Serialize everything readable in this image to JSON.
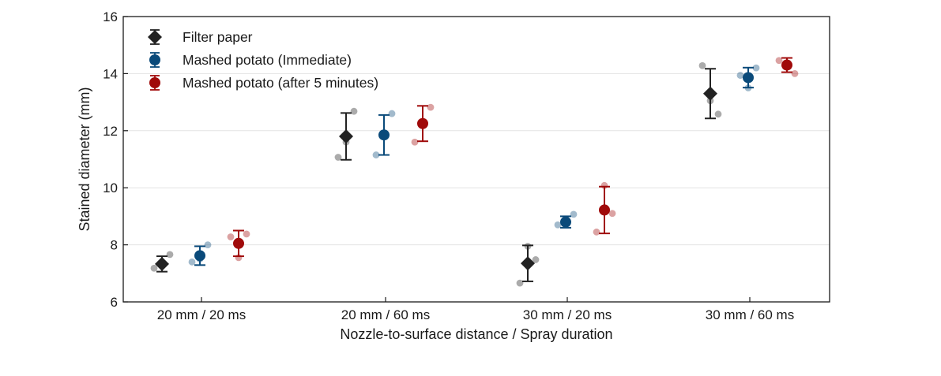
{
  "chart_data": {
    "type": "scatter",
    "title": "",
    "xlabel": "Nozzle-to-surface distance / Spray duration",
    "ylabel": "Stained diameter (mm)",
    "categories": [
      "20 mm / 20 ms",
      "20 mm / 60 ms",
      "30 mm / 20 ms",
      "30 mm / 60 ms"
    ],
    "ylim": [
      6,
      16
    ],
    "yticks": [
      "6",
      "8",
      "10",
      "12",
      "14",
      "16"
    ],
    "grid": "horizontal",
    "legend_position": "top-left",
    "series": [
      {
        "name": "Filter paper",
        "marker": "diamond",
        "color": "#222222",
        "mean": [
          7.33,
          11.8,
          7.35,
          13.3
        ],
        "err": [
          0.27,
          0.82,
          0.63,
          0.87
        ],
        "points": [
          [
            7.18,
            7.35,
            7.66
          ],
          [
            11.07,
            11.6,
            12.68
          ],
          [
            6.66,
            7.95,
            7.48
          ],
          [
            14.28,
            13.05,
            12.58
          ]
        ]
      },
      {
        "name": "Mashed potato (Immediate)",
        "marker": "circle",
        "color": "#0a4a7a",
        "mean": [
          7.62,
          11.85,
          8.8,
          13.86
        ],
        "err": [
          0.33,
          0.7,
          0.2,
          0.35
        ],
        "points": [
          [
            7.4,
            7.5,
            8.0
          ],
          [
            11.15,
            11.8,
            12.6
          ],
          [
            8.7,
            8.8,
            9.07
          ],
          [
            13.94,
            13.5,
            14.2
          ]
        ]
      },
      {
        "name": "Mashed potato (after 5 minutes)",
        "marker": "circle",
        "color": "#a00a0a",
        "mean": [
          8.05,
          12.25,
          9.22,
          14.3
        ],
        "err": [
          0.45,
          0.62,
          0.82,
          0.25
        ],
        "points": [
          [
            8.28,
            7.55,
            8.38
          ],
          [
            11.6,
            12.25,
            12.82
          ],
          [
            8.45,
            10.08,
            9.1
          ],
          [
            14.46,
            14.3,
            14.0
          ]
        ]
      }
    ]
  }
}
